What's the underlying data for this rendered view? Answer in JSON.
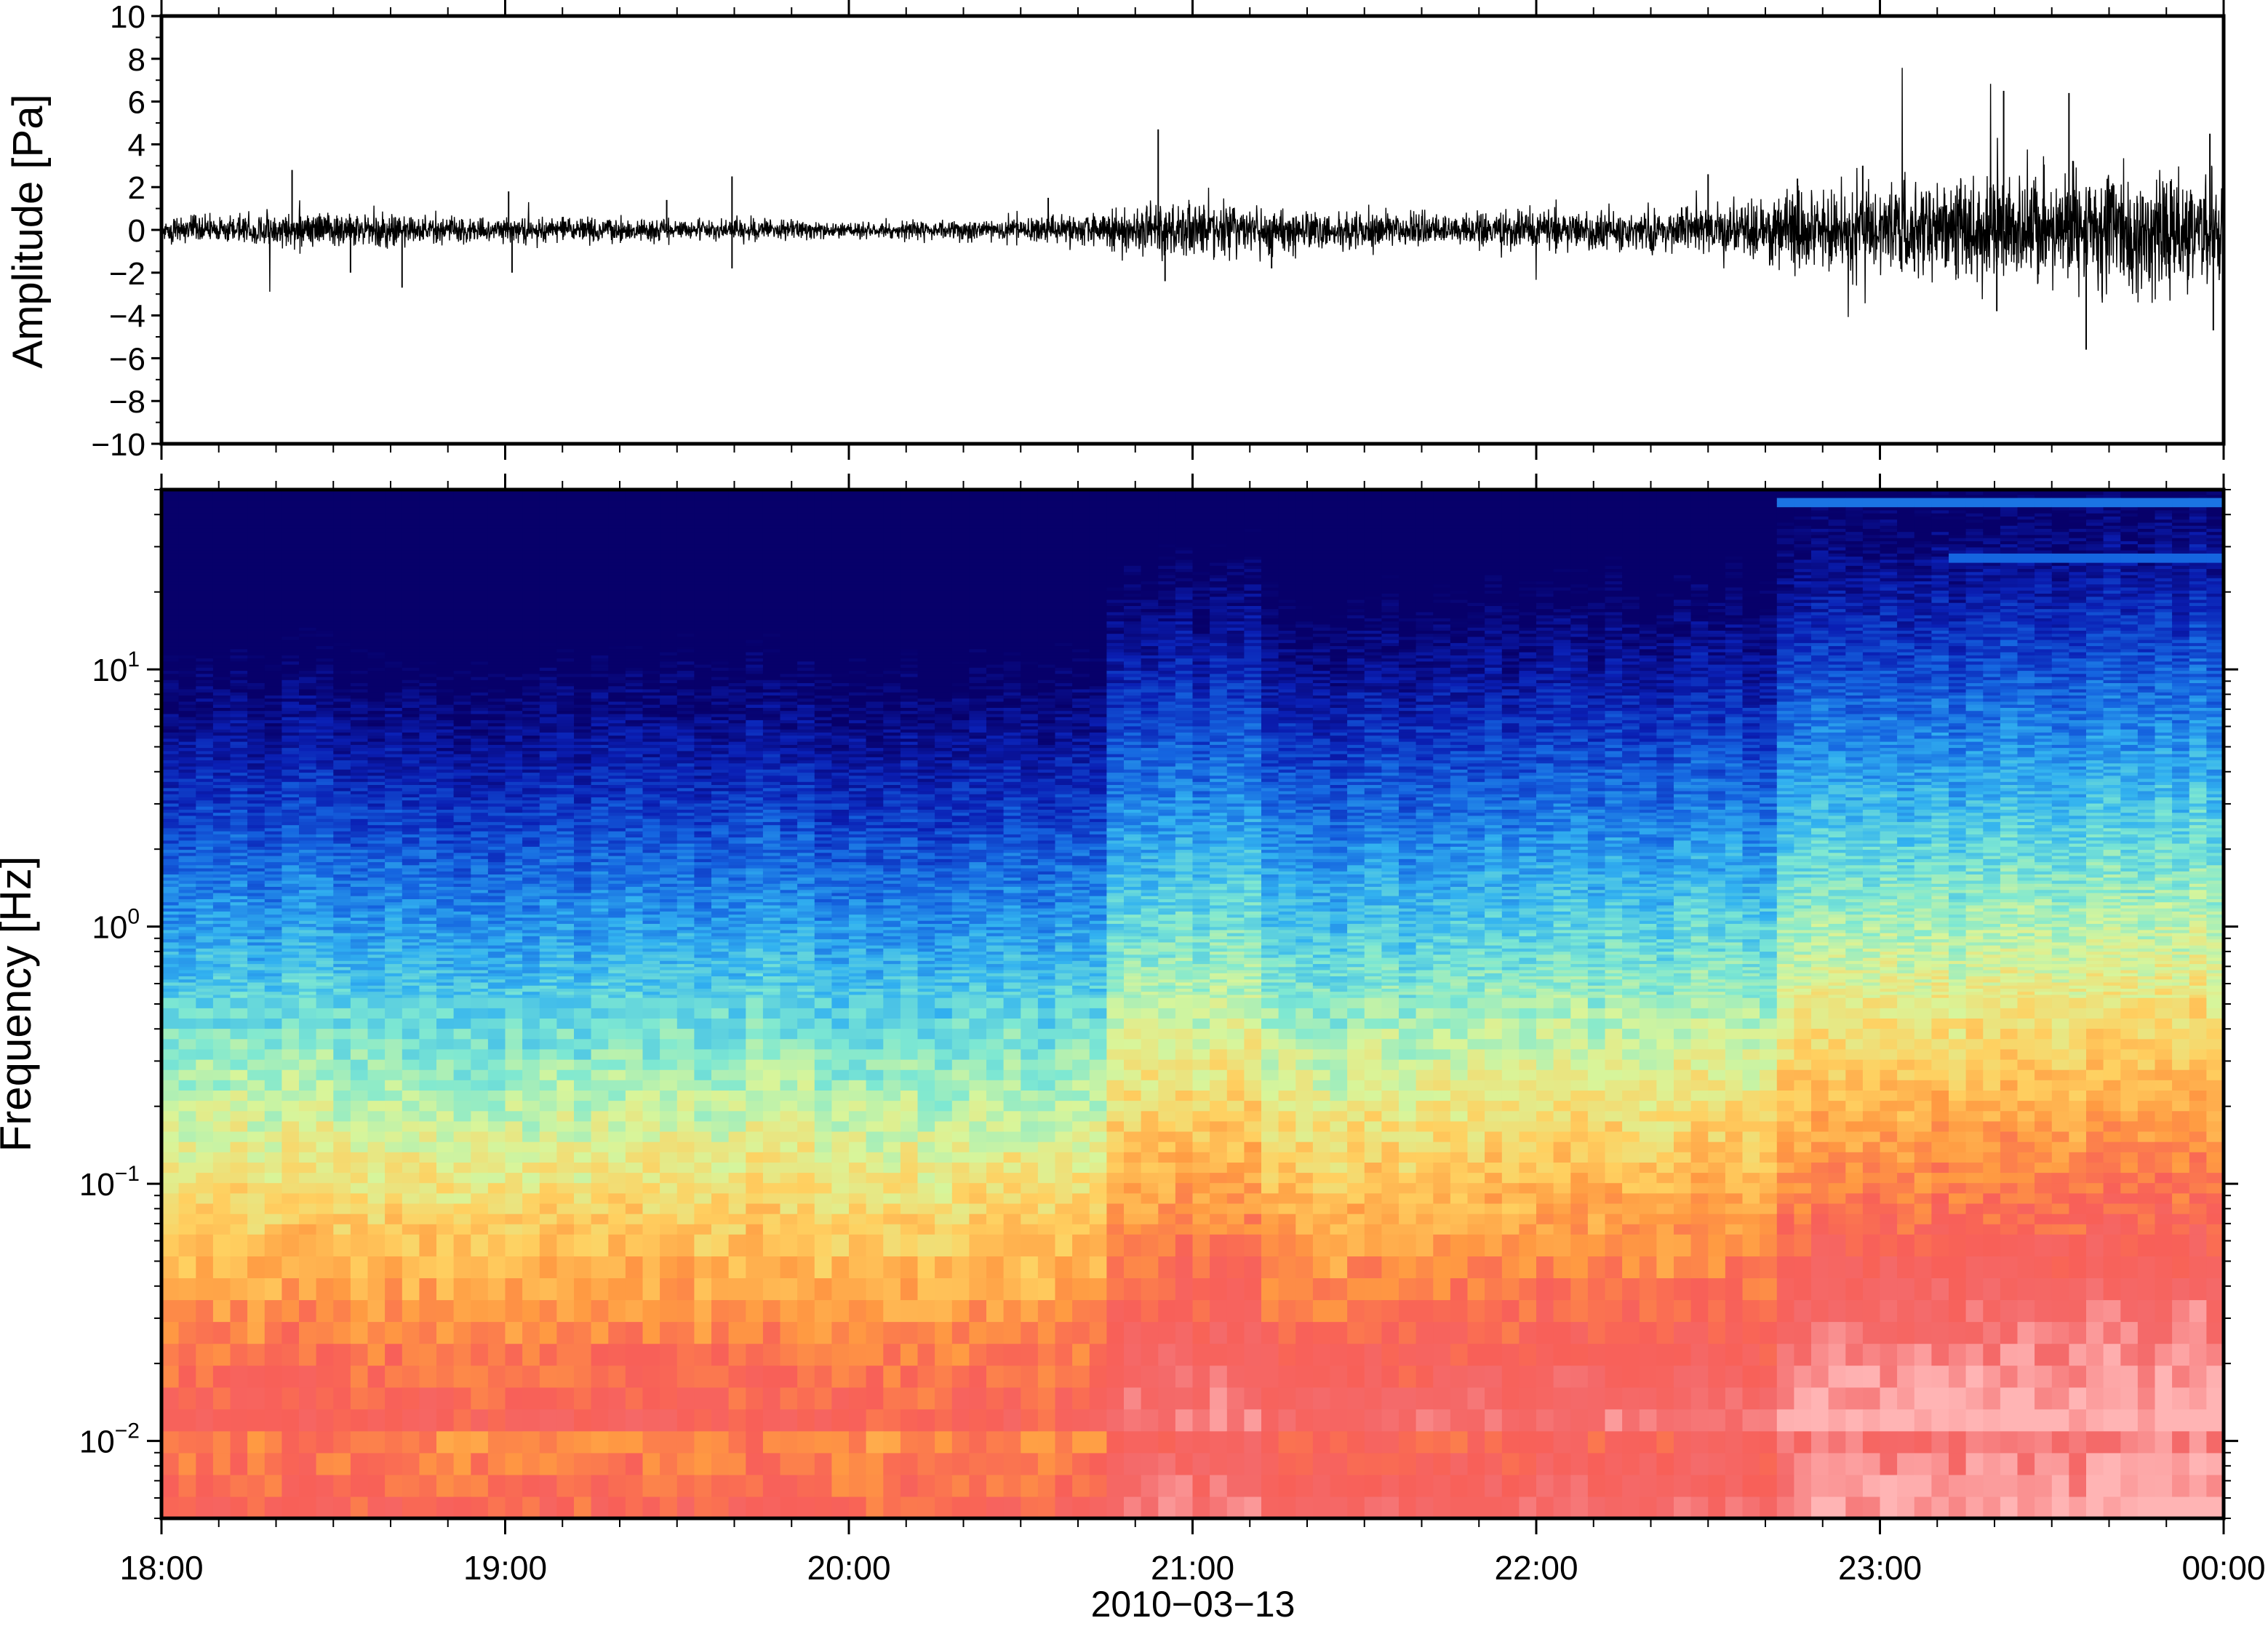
{
  "chart_data": [
    {
      "type": "line",
      "panel": "waveform",
      "title": "",
      "xlabel": "",
      "ylabel": "Amplitude [Pa]",
      "ylim": [
        -10,
        10
      ],
      "yticks": [
        "10",
        "8",
        "6",
        "4",
        "2",
        "0",
        "−2",
        "−4",
        "−6",
        "−8",
        "−10"
      ],
      "ytick_values": [
        10,
        8,
        6,
        4,
        2,
        0,
        -2,
        -4,
        -6,
        -8,
        -10
      ],
      "xlim_hours": [
        18,
        24
      ],
      "grid": false,
      "series": [
        {
          "color": "#000000",
          "envelope": {
            "note_units": "x in hours since 00:00 of 2010-03-13, y in Pa (typical half-amplitude of noise)",
            "x": [
              18.0,
              18.5,
              19.0,
              19.5,
              20.0,
              20.5,
              20.8,
              20.9,
              21.2,
              21.5,
              22.0,
              22.5,
              22.7,
              23.0,
              23.3,
              23.5,
              24.0
            ],
            "y": [
              0.5,
              0.7,
              0.5,
              0.45,
              0.35,
              0.45,
              0.8,
              1.3,
              1.0,
              0.7,
              0.8,
              0.9,
              1.5,
              1.8,
              2.2,
              2.4,
              2.4
            ]
          },
          "spikes": [
            {
              "t": 18.38,
              "v": 2.8
            },
            {
              "t": 18.55,
              "v": -2.0
            },
            {
              "t": 18.7,
              "v": -2.7
            },
            {
              "t": 19.01,
              "v": 1.8
            },
            {
              "t": 19.02,
              "v": -2.0
            },
            {
              "t": 19.47,
              "v": 1.4
            },
            {
              "t": 19.66,
              "v": 2.5
            },
            {
              "t": 19.66,
              "v": -1.8
            },
            {
              "t": 20.58,
              "v": 1.5
            },
            {
              "t": 20.9,
              "v": 4.7
            },
            {
              "t": 20.92,
              "v": -2.4
            },
            {
              "t": 21.23,
              "v": -1.8
            },
            {
              "t": 22.5,
              "v": 2.6
            },
            {
              "t": 22.76,
              "v": 2.4
            },
            {
              "t": 22.95,
              "v": 3.0
            },
            {
              "t": 23.34,
              "v": -3.8
            },
            {
              "t": 23.36,
              "v": 6.5
            },
            {
              "t": 23.55,
              "v": 6.4
            },
            {
              "t": 23.6,
              "v": -5.6
            },
            {
              "t": 23.96,
              "v": 4.5
            },
            {
              "t": 23.97,
              "v": -4.7
            }
          ]
        }
      ]
    },
    {
      "type": "heatmap",
      "panel": "spectrogram",
      "title": "",
      "xlabel": "2010−03−13",
      "ylabel": "Frequency [Hz]",
      "yscale": "log",
      "ylim": [
        0.005,
        50
      ],
      "yticks": [
        {
          "value": 0.01,
          "base": "10",
          "exp": "−2"
        },
        {
          "value": 0.1,
          "base": "10",
          "exp": "−1"
        },
        {
          "value": 1,
          "base": "10",
          "exp": "0"
        },
        {
          "value": 10,
          "base": "10",
          "exp": "1"
        }
      ],
      "xticks": [
        "18:00",
        "19:00",
        "20:00",
        "21:00",
        "22:00",
        "23:00",
        "00:00"
      ],
      "xtick_hours": [
        18,
        19,
        20,
        21,
        22,
        23,
        24
      ],
      "colormap": [
        "#07006a",
        "#0a1fb4",
        "#1565e0",
        "#32b2f0",
        "#7ee8d2",
        "#d8f59a",
        "#ffd060",
        "#ff9a42",
        "#f86058",
        "#f46a6a",
        "#ffb4b4"
      ],
      "grid": false,
      "legend": "none"
    }
  ]
}
